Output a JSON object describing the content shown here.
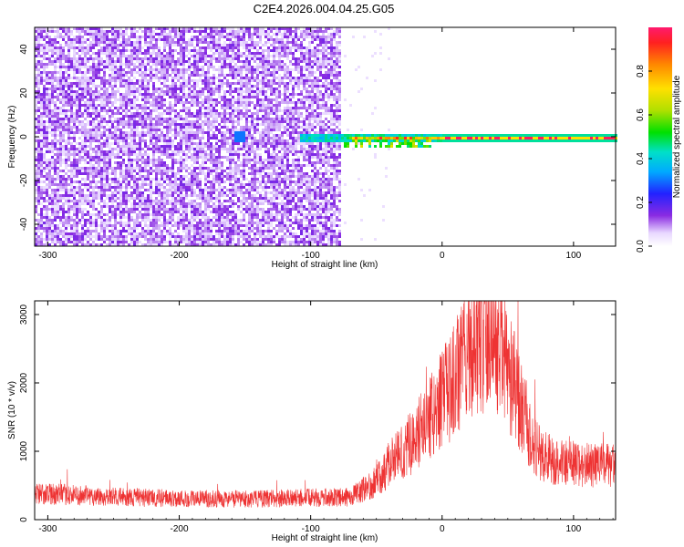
{
  "title": "C2E4.2026.004.04.25.G05",
  "chart_data": [
    {
      "type": "heatmap",
      "title": "C2E4.2026.004.04.25.G05",
      "xlabel": "Height of straight line (km)",
      "ylabel": "Frequency (Hz)",
      "xlim": [
        -310,
        132
      ],
      "ylim": [
        -50,
        50
      ],
      "xticks": [
        -300,
        -200,
        -100,
        0,
        100
      ],
      "yticks": [
        -40,
        -20,
        0,
        20,
        40
      ],
      "colorbar": {
        "label": "Normalized spectral amplitude",
        "range": [
          0,
          1
        ],
        "ticks": [
          0.0,
          0.2,
          0.4,
          0.6,
          0.8
        ],
        "tick_labels": [
          "0.0",
          "0.2",
          "0.4",
          "0.6",
          "0.8"
        ],
        "colormap": "rainbow (violet to red)"
      },
      "features": {
        "noise_region_x": [
          -310,
          -78
        ],
        "noise_amplitude": [
          0.0,
          0.15
        ],
        "signal_frequency_hz": 0,
        "signal_start_x": -110,
        "signal_peak_amplitude": 1.0
      },
      "grid": false
    },
    {
      "type": "line",
      "xlabel": "Height of straight line (km)",
      "ylabel": "SNR (10 * v/v)",
      "xlim": [
        -310,
        132
      ],
      "ylim": [
        0,
        3200
      ],
      "xticks": [
        -300,
        -200,
        -100,
        0,
        100
      ],
      "yticks": [
        0,
        1000,
        2000,
        3000
      ],
      "color": "#ee3333",
      "series": [
        {
          "x": [
            -310,
            -280,
            -250,
            -200,
            -150,
            -100,
            -70,
            -55,
            -45,
            -40,
            -30,
            -20,
            -10,
            0,
            10,
            20,
            30,
            40,
            50,
            60,
            70,
            80,
            90,
            100,
            110,
            120,
            132
          ],
          "y": [
            380,
            360,
            330,
            310,
            300,
            320,
            330,
            500,
            650,
            850,
            1000,
            1200,
            1500,
            1750,
            2050,
            2550,
            2650,
            2700,
            2200,
            1700,
            1050,
            900,
            850,
            820,
            800,
            800,
            780
          ]
        }
      ],
      "grid": false
    }
  ]
}
